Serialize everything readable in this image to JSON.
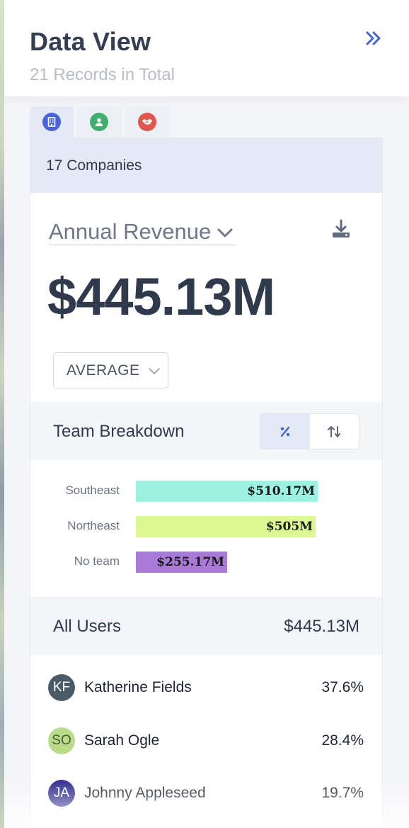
{
  "header": {
    "title": "Data View",
    "subtitle": "21 Records in Total",
    "collapse_icon": "double-chevron-right-icon"
  },
  "tabs": [
    {
      "name": "companies",
      "icon": "building-icon",
      "color": "#4a63d8",
      "active": true
    },
    {
      "name": "people",
      "icon": "person-icon",
      "color": "#3fae6e",
      "active": false
    },
    {
      "name": "deals",
      "icon": "handshake-icon",
      "color": "#e0574f",
      "active": false
    }
  ],
  "summary": {
    "count_label": "17 Companies",
    "metric_label": "Annual Revenue",
    "value": "$445.13M",
    "aggregation": "AVERAGE"
  },
  "team_breakdown": {
    "title": "Team Breakdown",
    "mode_percent_icon": "percent-icon",
    "mode_sort_icon": "sort-icon"
  },
  "chart_data": {
    "type": "bar",
    "orientation": "horizontal",
    "categories": [
      "Southeast",
      "Northeast",
      "No team"
    ],
    "values": [
      510.17,
      505,
      255.17
    ],
    "value_labels": [
      "$510.17M",
      "$505M",
      "$255.17M"
    ],
    "colors": [
      "#9bf2e0",
      "#dcf893",
      "#a97ad8"
    ],
    "unit": "$M"
  },
  "users": {
    "title": "All Users",
    "total": "$445.13M",
    "rows": [
      {
        "initials": "KF",
        "name": "Katherine Fields",
        "percent": "37.6%",
        "avatar_bg": "#4a5a66",
        "avatar_fg": "#ffffff"
      },
      {
        "initials": "SO",
        "name": "Sarah Ogle",
        "percent": "28.4%",
        "avatar_bg": "#b9dc8a",
        "avatar_fg": "#4a5a30"
      },
      {
        "initials": "JA",
        "name": "Johnny Appleseed",
        "percent": "19.7%",
        "avatar_bg": "#2d2a8c",
        "avatar_fg": "#ffffff"
      }
    ]
  }
}
